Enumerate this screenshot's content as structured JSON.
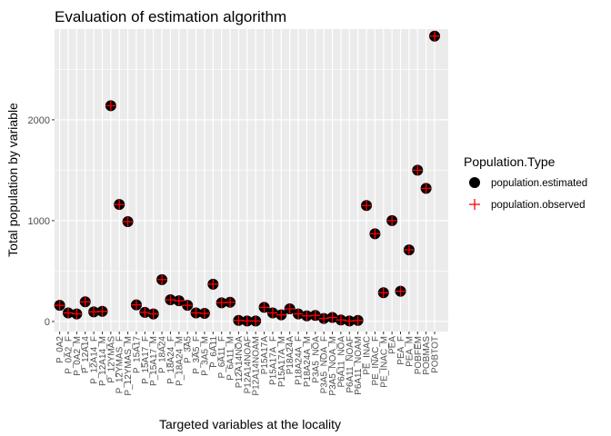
{
  "chart_data": {
    "type": "scatter",
    "title": "Evaluation of estimation algorithm",
    "xlabel": "Targeted variables at the locality",
    "ylabel": "Total population by variable",
    "ylim": [
      -100,
      2900
    ],
    "yticks": [
      0,
      1000,
      2000
    ],
    "grid": true,
    "legend": {
      "title": "Population.Type",
      "placement": "right",
      "entries": [
        "population.estimated",
        "population.observed"
      ]
    },
    "colors": {
      "panel": "#ebebeb",
      "grid_major": "#ffffff",
      "estimated": "#000000",
      "observed": "#ff0000"
    },
    "categories": [
      "P_0A2",
      "P_0A2_F",
      "P_0A2_M",
      "P_12A14",
      "P_12A14_F",
      "P_12A14_M",
      "P_12YMAS",
      "P_12YMAS_F",
      "P_12YMAS_M",
      "P_15A17",
      "P_15A17_F",
      "P_15A17_M",
      "P_18A24",
      "P_18A24_F",
      "P_18A24_M",
      "P_3A5",
      "P_3A5_F",
      "P_3A5_M",
      "P_6A11",
      "P_6A11_F",
      "P_6A11_M",
      "P12A14NOA",
      "P12A14NOAF",
      "P12A14NOAM",
      "P15A17A",
      "P15A17A_F",
      "P15A17A_M",
      "P18A24A",
      "P18A24A_F",
      "P18A24A_M",
      "P3A5_NOA",
      "P3A5_NOA_F",
      "P3A5_NOA_M",
      "P6A11_NOA",
      "P6A11_NOAF",
      "P6A11_NOAM",
      "PE_INAC",
      "PE_INAC_F",
      "PE_INAC_M",
      "PEA",
      "PEA_F",
      "PEA_M",
      "POBFEM",
      "POBMAS",
      "POBTOT"
    ],
    "series": [
      {
        "name": "population.estimated",
        "values": [
          160,
          85,
          75,
          195,
          95,
          100,
          2140,
          1160,
          990,
          165,
          90,
          75,
          415,
          215,
          205,
          160,
          85,
          80,
          370,
          185,
          190,
          10,
          5,
          5,
          140,
          85,
          65,
          125,
          75,
          55,
          60,
          30,
          40,
          15,
          5,
          10,
          1150,
          870,
          285,
          1000,
          300,
          710,
          1500,
          1320,
          2830
        ]
      },
      {
        "name": "population.observed",
        "values": [
          160,
          85,
          75,
          195,
          95,
          100,
          2140,
          1160,
          990,
          165,
          90,
          75,
          415,
          215,
          205,
          160,
          85,
          80,
          370,
          185,
          190,
          10,
          5,
          5,
          140,
          85,
          65,
          125,
          75,
          55,
          60,
          30,
          40,
          15,
          5,
          10,
          1150,
          870,
          285,
          1000,
          300,
          710,
          1500,
          1320,
          2830
        ]
      }
    ]
  }
}
